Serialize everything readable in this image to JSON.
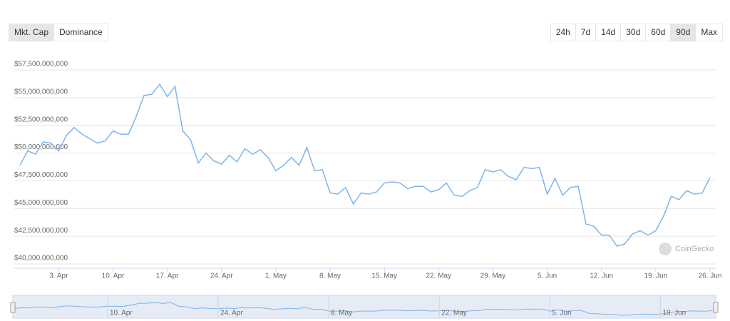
{
  "tabs": [
    "Mkt. Cap",
    "Dominance"
  ],
  "ranges": [
    "24h",
    "7d",
    "14d",
    "30d",
    "60d",
    "90d",
    "Max"
  ],
  "watermark": "CoinGecko",
  "chart_data": {
    "type": "line",
    "categories": [
      null,
      null,
      null,
      null,
      null,
      "3. Apr",
      null,
      null,
      null,
      null,
      null,
      null,
      "10. Apr",
      null,
      null,
      null,
      null,
      null,
      null,
      "17. Apr",
      null,
      null,
      null,
      null,
      null,
      null,
      "24. Apr",
      null,
      null,
      null,
      null,
      null,
      null,
      "1. May",
      null,
      null,
      null,
      null,
      null,
      null,
      "8. May",
      null,
      null,
      null,
      null,
      null,
      null,
      "15. May",
      null,
      null,
      null,
      null,
      null,
      null,
      "22. May",
      null,
      null,
      null,
      null,
      null,
      null,
      "29. May",
      null,
      null,
      null,
      null,
      null,
      null,
      "5. Jun",
      null,
      null,
      null,
      null,
      null,
      null,
      "12. Jun",
      null,
      null,
      null,
      null,
      null,
      null,
      "19. Jun",
      null,
      null,
      null,
      null,
      null,
      null,
      "26. Jun"
    ],
    "series": [
      {
        "name": "Market Cap",
        "color": "#7cb5ec",
        "values": [
          48900000000,
          50200000000,
          49900000000,
          51000000000,
          50900000000,
          50200000000,
          51600000000,
          52300000000,
          51700000000,
          51300000000,
          50900000000,
          51100000000,
          52000000000,
          51700000000,
          51700000000,
          53300000000,
          55200000000,
          55300000000,
          56200000000,
          55100000000,
          56000000000,
          52000000000,
          51200000000,
          49100000000,
          50000000000,
          49300000000,
          49000000000,
          49800000000,
          49200000000,
          50400000000,
          49900000000,
          50300000000,
          49600000000,
          48400000000,
          48900000000,
          49600000000,
          48900000000,
          50500000000,
          48400000000,
          48500000000,
          46400000000,
          46300000000,
          46900000000,
          45400000000,
          46400000000,
          46300000000,
          46500000000,
          47300000000,
          47400000000,
          47300000000,
          46800000000,
          47000000000,
          47000000000,
          46500000000,
          46700000000,
          47300000000,
          46200000000,
          46100000000,
          46600000000,
          46900000000,
          48500000000,
          48300000000,
          48500000000,
          47900000000,
          47600000000,
          48700000000,
          48600000000,
          48700000000,
          46300000000,
          47700000000,
          46200000000,
          46900000000,
          47000000000,
          43600000000,
          43400000000,
          42600000000,
          42600000000,
          41600000000,
          41800000000,
          42700000000,
          43000000000,
          42600000000,
          43000000000,
          44300000000,
          46100000000,
          45800000000,
          46600000000,
          46300000000,
          46400000000,
          47800000000
        ]
      }
    ],
    "ylim": [
      40000000000,
      57500000000
    ],
    "yticks": [
      {
        "value": 40000000000,
        "label": "$40,000,000,000"
      },
      {
        "value": 42500000000,
        "label": "$42,500,000,000"
      },
      {
        "value": 45000000000,
        "label": "$45,000,000,000"
      },
      {
        "value": 47500000000,
        "label": "$47,500,000,000"
      },
      {
        "value": 50000000000,
        "label": "$50,000,000,000"
      },
      {
        "value": 52500000000,
        "label": "$52,500,000,000"
      },
      {
        "value": 55000000000,
        "label": "$55,000,000,000"
      },
      {
        "value": 57500000000,
        "label": "$57,500,000,000"
      }
    ],
    "grid": true
  }
}
